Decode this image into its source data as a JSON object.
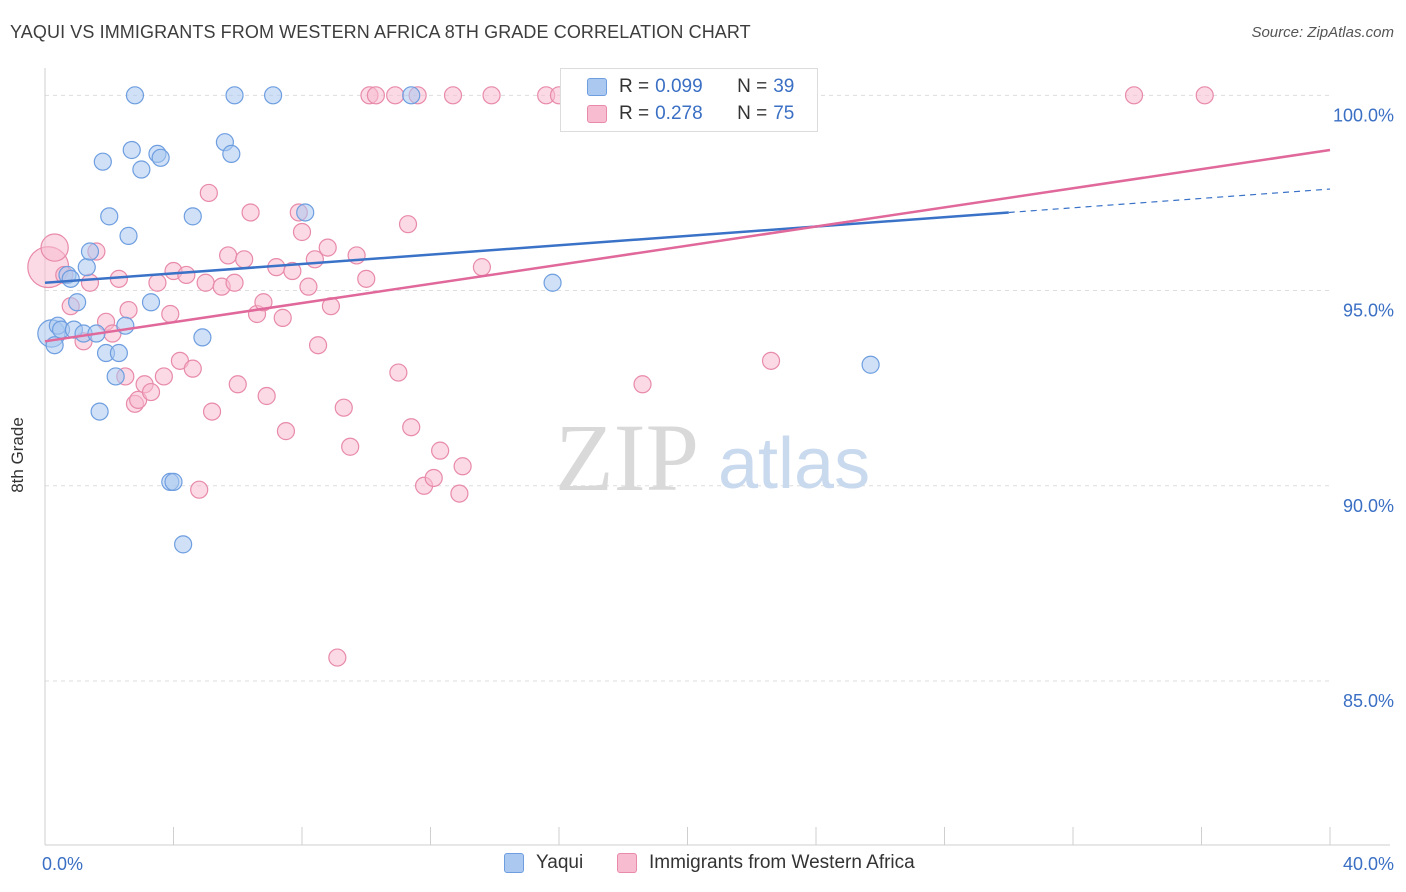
{
  "header": {
    "title": "YAQUI VS IMMIGRANTS FROM WESTERN AFRICA 8TH GRADE CORRELATION CHART",
    "source": "Source: ZipAtlas.com"
  },
  "watermark": {
    "part1": "ZIP",
    "part2": "atlas"
  },
  "legend": {
    "rows": [
      {
        "r_label": "R =",
        "r_value": "0.099",
        "n_label": "N =",
        "n_value": "39"
      },
      {
        "r_label": "R =",
        "r_value": "0.278",
        "n_label": "N =",
        "n_value": "75"
      }
    ]
  },
  "bottom_legend": {
    "series1": "Yaqui",
    "series2": "Immigrants from Western Africa"
  },
  "colors": {
    "yaqui_fill": "#aac8f0",
    "yaqui_stroke": "#6e9ee0",
    "yaqui_line": "#3a72c8",
    "wa_fill": "#f7bcd0",
    "wa_stroke": "#e88aaa",
    "wa_line": "#e0689a",
    "grid": "#dddddd",
    "tick_text": "#3a6fc4"
  },
  "chart_data": {
    "type": "scatter",
    "title": "YAQUI VS IMMIGRANTS FROM WESTERN AFRICA 8TH GRADE CORRELATION CHART",
    "xlabel": "",
    "ylabel": "8th Grade",
    "xlim": [
      0,
      40
    ],
    "ylim": [
      80.8,
      100.7
    ],
    "x_tick_labels": [
      {
        "value": 0,
        "label": "0.0%"
      },
      {
        "value": 40,
        "label": "40.0%"
      }
    ],
    "x_minor_ticks": [
      4,
      8,
      12,
      16,
      20,
      24,
      28,
      32,
      36,
      40
    ],
    "y_tick_labels": [
      {
        "value": 100,
        "label": "100.0%"
      },
      {
        "value": 95,
        "label": "95.0%"
      },
      {
        "value": 90,
        "label": "90.0%"
      },
      {
        "value": 85,
        "label": "85.0%"
      }
    ],
    "gridlines_y": [
      100,
      95,
      90,
      85
    ],
    "grid": true,
    "series": [
      {
        "name": "Yaqui",
        "R": 0.099,
        "N": 39,
        "trend": {
          "x0": 0,
          "y0": 95.2,
          "x1": 30,
          "y1": 97.0,
          "dash_x1": 40,
          "dash_y1": 97.6
        },
        "points": [
          {
            "x": 0.2,
            "y": 93.9,
            "s": 1.6
          },
          {
            "x": 0.3,
            "y": 93.6,
            "s": 1
          },
          {
            "x": 0.4,
            "y": 94.1,
            "s": 1
          },
          {
            "x": 0.5,
            "y": 94.0,
            "s": 1
          },
          {
            "x": 0.7,
            "y": 95.4,
            "s": 1
          },
          {
            "x": 0.8,
            "y": 95.3,
            "s": 1
          },
          {
            "x": 0.9,
            "y": 94.0,
            "s": 1
          },
          {
            "x": 1.0,
            "y": 94.7,
            "s": 1
          },
          {
            "x": 1.2,
            "y": 93.9,
            "s": 1
          },
          {
            "x": 1.3,
            "y": 95.6,
            "s": 1
          },
          {
            "x": 1.4,
            "y": 96.0,
            "s": 1
          },
          {
            "x": 1.6,
            "y": 93.9,
            "s": 1
          },
          {
            "x": 1.7,
            "y": 91.9,
            "s": 1
          },
          {
            "x": 1.8,
            "y": 98.3,
            "s": 1
          },
          {
            "x": 1.9,
            "y": 93.4,
            "s": 1
          },
          {
            "x": 2.0,
            "y": 96.9,
            "s": 1
          },
          {
            "x": 2.2,
            "y": 92.8,
            "s": 1
          },
          {
            "x": 2.3,
            "y": 93.4,
            "s": 1
          },
          {
            "x": 2.5,
            "y": 94.1,
            "s": 1
          },
          {
            "x": 2.6,
            "y": 96.4,
            "s": 1
          },
          {
            "x": 2.7,
            "y": 98.6,
            "s": 1
          },
          {
            "x": 2.8,
            "y": 100.0,
            "s": 1
          },
          {
            "x": 3.0,
            "y": 98.1,
            "s": 1
          },
          {
            "x": 3.3,
            "y": 94.7,
            "s": 1
          },
          {
            "x": 3.5,
            "y": 98.5,
            "s": 1
          },
          {
            "x": 3.6,
            "y": 98.4,
            "s": 1
          },
          {
            "x": 3.9,
            "y": 90.1,
            "s": 1
          },
          {
            "x": 4.0,
            "y": 90.1,
            "s": 1
          },
          {
            "x": 4.3,
            "y": 88.5,
            "s": 1
          },
          {
            "x": 4.6,
            "y": 96.9,
            "s": 1
          },
          {
            "x": 4.9,
            "y": 93.8,
            "s": 1
          },
          {
            "x": 5.6,
            "y": 98.8,
            "s": 1
          },
          {
            "x": 5.8,
            "y": 98.5,
            "s": 1
          },
          {
            "x": 5.9,
            "y": 100.0,
            "s": 1
          },
          {
            "x": 7.1,
            "y": 100.0,
            "s": 1
          },
          {
            "x": 8.1,
            "y": 97.0,
            "s": 1
          },
          {
            "x": 11.4,
            "y": 100.0,
            "s": 1
          },
          {
            "x": 15.8,
            "y": 95.2,
            "s": 1
          },
          {
            "x": 25.7,
            "y": 93.1,
            "s": 1
          }
        ]
      },
      {
        "name": "Immigrants from Western Africa",
        "R": 0.278,
        "N": 75,
        "trend": {
          "x0": 0,
          "y0": 93.7,
          "x1": 40,
          "y1": 98.6
        },
        "points": [
          {
            "x": 0.1,
            "y": 95.6,
            "s": 2.4
          },
          {
            "x": 0.3,
            "y": 96.1,
            "s": 1.6
          },
          {
            "x": 0.6,
            "y": 95.4,
            "s": 1
          },
          {
            "x": 0.8,
            "y": 94.6,
            "s": 1
          },
          {
            "x": 1.2,
            "y": 93.7,
            "s": 1
          },
          {
            "x": 1.4,
            "y": 95.2,
            "s": 1
          },
          {
            "x": 1.6,
            "y": 96.0,
            "s": 1
          },
          {
            "x": 1.9,
            "y": 94.2,
            "s": 1
          },
          {
            "x": 2.1,
            "y": 93.9,
            "s": 1
          },
          {
            "x": 2.3,
            "y": 95.3,
            "s": 1
          },
          {
            "x": 2.5,
            "y": 92.8,
            "s": 1
          },
          {
            "x": 2.6,
            "y": 94.5,
            "s": 1
          },
          {
            "x": 2.8,
            "y": 92.1,
            "s": 1
          },
          {
            "x": 2.9,
            "y": 92.2,
            "s": 1
          },
          {
            "x": 3.1,
            "y": 92.6,
            "s": 1
          },
          {
            "x": 3.3,
            "y": 92.4,
            "s": 1
          },
          {
            "x": 3.5,
            "y": 95.2,
            "s": 1
          },
          {
            "x": 3.7,
            "y": 92.8,
            "s": 1
          },
          {
            "x": 3.9,
            "y": 94.4,
            "s": 1
          },
          {
            "x": 4.0,
            "y": 95.5,
            "s": 1
          },
          {
            "x": 4.2,
            "y": 93.2,
            "s": 1
          },
          {
            "x": 4.4,
            "y": 95.4,
            "s": 1
          },
          {
            "x": 4.6,
            "y": 93.0,
            "s": 1
          },
          {
            "x": 4.8,
            "y": 89.9,
            "s": 1
          },
          {
            "x": 5.0,
            "y": 95.2,
            "s": 1
          },
          {
            "x": 5.1,
            "y": 97.5,
            "s": 1
          },
          {
            "x": 5.2,
            "y": 91.9,
            "s": 1
          },
          {
            "x": 5.5,
            "y": 95.1,
            "s": 1
          },
          {
            "x": 5.7,
            "y": 95.9,
            "s": 1
          },
          {
            "x": 5.9,
            "y": 95.2,
            "s": 1
          },
          {
            "x": 6.0,
            "y": 92.6,
            "s": 1
          },
          {
            "x": 6.2,
            "y": 95.8,
            "s": 1
          },
          {
            "x": 6.4,
            "y": 97.0,
            "s": 1
          },
          {
            "x": 6.6,
            "y": 94.4,
            "s": 1
          },
          {
            "x": 6.8,
            "y": 94.7,
            "s": 1
          },
          {
            "x": 6.9,
            "y": 92.3,
            "s": 1
          },
          {
            "x": 7.2,
            "y": 95.6,
            "s": 1
          },
          {
            "x": 7.4,
            "y": 94.3,
            "s": 1
          },
          {
            "x": 7.5,
            "y": 91.4,
            "s": 1
          },
          {
            "x": 7.7,
            "y": 95.5,
            "s": 1
          },
          {
            "x": 7.9,
            "y": 97.0,
            "s": 1
          },
          {
            "x": 8.0,
            "y": 96.5,
            "s": 1
          },
          {
            "x": 8.2,
            "y": 95.1,
            "s": 1
          },
          {
            "x": 8.4,
            "y": 95.8,
            "s": 1
          },
          {
            "x": 8.5,
            "y": 93.6,
            "s": 1
          },
          {
            "x": 8.8,
            "y": 96.1,
            "s": 1
          },
          {
            "x": 8.9,
            "y": 94.6,
            "s": 1
          },
          {
            "x": 9.1,
            "y": 85.6,
            "s": 1
          },
          {
            "x": 9.3,
            "y": 92.0,
            "s": 1
          },
          {
            "x": 9.5,
            "y": 91.0,
            "s": 1
          },
          {
            "x": 9.7,
            "y": 95.9,
            "s": 1
          },
          {
            "x": 10.0,
            "y": 95.3,
            "s": 1
          },
          {
            "x": 10.1,
            "y": 100.0,
            "s": 1
          },
          {
            "x": 10.3,
            "y": 100.0,
            "s": 1
          },
          {
            "x": 10.9,
            "y": 100.0,
            "s": 1
          },
          {
            "x": 11.0,
            "y": 92.9,
            "s": 1
          },
          {
            "x": 11.3,
            "y": 96.7,
            "s": 1
          },
          {
            "x": 11.4,
            "y": 91.5,
            "s": 1
          },
          {
            "x": 11.6,
            "y": 100.0,
            "s": 1
          },
          {
            "x": 11.8,
            "y": 90.0,
            "s": 1
          },
          {
            "x": 12.1,
            "y": 90.2,
            "s": 1
          },
          {
            "x": 12.3,
            "y": 90.9,
            "s": 1
          },
          {
            "x": 12.7,
            "y": 100.0,
            "s": 1
          },
          {
            "x": 12.9,
            "y": 89.8,
            "s": 1
          },
          {
            "x": 13.0,
            "y": 90.5,
            "s": 1
          },
          {
            "x": 13.6,
            "y": 95.6,
            "s": 1
          },
          {
            "x": 13.9,
            "y": 100.0,
            "s": 1
          },
          {
            "x": 15.6,
            "y": 100.0,
            "s": 1
          },
          {
            "x": 16.0,
            "y": 100.0,
            "s": 1
          },
          {
            "x": 16.5,
            "y": 100.0,
            "s": 1
          },
          {
            "x": 17.2,
            "y": 100.0,
            "s": 1
          },
          {
            "x": 18.6,
            "y": 92.6,
            "s": 1
          },
          {
            "x": 22.6,
            "y": 93.2,
            "s": 1
          },
          {
            "x": 33.9,
            "y": 100.0,
            "s": 1
          },
          {
            "x": 36.1,
            "y": 100.0,
            "s": 1
          }
        ]
      }
    ]
  }
}
